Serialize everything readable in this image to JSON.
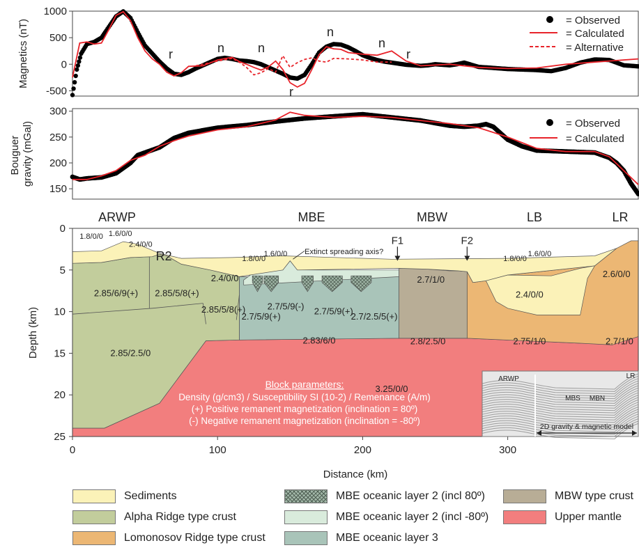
{
  "chart_data": [
    {
      "type": "line",
      "panel": "magnetics",
      "ylabel": "Magnetics (nT)",
      "ylim": [
        -600,
        1000
      ],
      "yticks": [
        -500,
        0,
        500,
        1000
      ],
      "xlim": [
        0,
        390
      ],
      "legend": [
        "= Observed",
        "= Calculated",
        "= Alternative"
      ],
      "legend_position": "top-right",
      "series": [
        {
          "name": "Observed",
          "x": [
            0,
            3,
            6,
            10,
            15,
            20,
            25,
            30,
            35,
            40,
            45,
            50,
            55,
            60,
            65,
            70,
            75,
            80,
            85,
            90,
            95,
            100,
            105,
            110,
            115,
            120,
            125,
            130,
            135,
            140,
            145,
            150,
            155,
            160,
            165,
            170,
            175,
            180,
            185,
            190,
            195,
            200,
            205,
            210,
            215,
            220,
            225,
            230,
            235,
            240,
            245,
            250,
            255,
            260,
            265,
            270,
            275,
            280,
            290,
            300,
            310,
            320,
            330,
            340,
            350,
            360,
            370,
            380,
            390
          ],
          "y": [
            -580,
            -100,
            200,
            380,
            420,
            500,
            700,
            900,
            995,
            870,
            600,
            350,
            200,
            50,
            -80,
            -180,
            -200,
            -150,
            -80,
            -20,
            40,
            100,
            120,
            100,
            70,
            60,
            40,
            0,
            -60,
            -120,
            -180,
            -250,
            -270,
            -200,
            0,
            220,
            330,
            380,
            370,
            320,
            250,
            170,
            120,
            80,
            50,
            30,
            10,
            -10,
            -20,
            -30,
            -20,
            0,
            -10,
            -20,
            0,
            30,
            -10,
            -50,
            -70,
            -90,
            -100,
            -110,
            -130,
            -70,
            30,
            90,
            80,
            -20,
            -40
          ]
        },
        {
          "name": "Calculated",
          "x": [
            0,
            5,
            10,
            15,
            20,
            25,
            30,
            35,
            40,
            45,
            50,
            55,
            60,
            65,
            70,
            75,
            80,
            90,
            100,
            110,
            115,
            120,
            125,
            130,
            135,
            140,
            145,
            150,
            155,
            160,
            165,
            170,
            175,
            180,
            185,
            190,
            200,
            210,
            220,
            230,
            240,
            260,
            280,
            300,
            320,
            340,
            360,
            390
          ],
          "y": [
            -250,
            400,
            420,
            380,
            400,
            650,
            920,
            990,
            820,
            500,
            250,
            100,
            0,
            -150,
            -220,
            -160,
            -40,
            -30,
            80,
            130,
            50,
            0,
            -60,
            -110,
            -50,
            60,
            -100,
            -350,
            -430,
            -360,
            -100,
            180,
            330,
            290,
            280,
            220,
            190,
            170,
            250,
            60,
            -30,
            0,
            -60,
            -80,
            -70,
            0,
            40,
            100
          ]
        },
        {
          "name": "Alternative",
          "x": [
            85,
            100,
            110,
            115,
            120,
            125,
            130,
            135,
            140,
            145,
            150,
            155,
            160,
            165,
            170,
            175,
            180,
            190,
            200,
            210,
            220
          ],
          "y": [
            -30,
            60,
            110,
            40,
            -60,
            -200,
            -160,
            -80,
            -150,
            160,
            -60,
            30,
            90,
            120,
            60,
            40,
            110,
            100,
            80,
            40,
            40
          ]
        }
      ],
      "annotations": [
        "r",
        "n",
        "n",
        "r",
        "n",
        "n",
        "r"
      ]
    },
    {
      "type": "line",
      "panel": "gravity",
      "ylabel": "Bouguer gravity (mGal)",
      "ylim": [
        130,
        305
      ],
      "yticks": [
        150,
        200,
        250,
        300
      ],
      "xlim": [
        0,
        390
      ],
      "legend": [
        "= Observed",
        "= Calculated"
      ],
      "legend_position": "top-right",
      "series": [
        {
          "name": "Observed",
          "x": [
            0,
            5,
            10,
            20,
            30,
            40,
            45,
            50,
            60,
            70,
            80,
            100,
            120,
            140,
            160,
            180,
            200,
            220,
            240,
            260,
            270,
            280,
            285,
            290,
            300,
            310,
            320,
            340,
            360,
            370,
            375,
            380,
            385,
            390
          ],
          "y": [
            173,
            168,
            170,
            172,
            180,
            200,
            215,
            220,
            230,
            248,
            258,
            268,
            273,
            280,
            286,
            290,
            294,
            288,
            282,
            272,
            270,
            272,
            275,
            270,
            245,
            232,
            224,
            222,
            220,
            210,
            200,
            185,
            160,
            140
          ]
        },
        {
          "name": "Calculated",
          "x": [
            0,
            10,
            20,
            30,
            40,
            50,
            60,
            70,
            80,
            100,
            120,
            140,
            150,
            160,
            180,
            200,
            220,
            240,
            260,
            280,
            300,
            320,
            340,
            360,
            370,
            380,
            390
          ],
          "y": [
            168,
            168,
            175,
            185,
            205,
            215,
            232,
            243,
            252,
            264,
            270,
            283,
            298,
            292,
            288,
            290,
            288,
            282,
            276,
            268,
            250,
            228,
            222,
            222,
            212,
            185,
            158
          ]
        }
      ]
    },
    {
      "type": "area",
      "panel": "model",
      "xlabel": "Distance (km)",
      "ylabel": "Depth (km)",
      "xlim": [
        0,
        390
      ],
      "ylim": [
        25,
        0
      ],
      "xticks": [
        0,
        100,
        200,
        300
      ],
      "yticks": [
        0,
        5,
        10,
        15,
        20,
        25
      ],
      "regions": [
        "ARWP",
        "MBE",
        "MBW",
        "LB",
        "LR"
      ],
      "faults": [
        "F1",
        "F2"
      ],
      "ridge": "R2",
      "annotation": "Extinct spreading axis?",
      "block_labels": [
        {
          "text": "1.8/0/0",
          "x": 13,
          "d": 0.9
        },
        {
          "text": "1.6/0/0",
          "x": 33,
          "d": 0.6
        },
        {
          "text": "2.4/0/0",
          "x": 47,
          "d": 1.9
        },
        {
          "text": "R2",
          "x": 63,
          "d": 3.5
        },
        {
          "text": "1.8/0/0",
          "x": 125,
          "d": 3.6
        },
        {
          "text": "1.6/0/0",
          "x": 140,
          "d": 3.0
        },
        {
          "text": "1.8/0/0",
          "x": 305,
          "d": 3.6
        },
        {
          "text": "1.6/0/0",
          "x": 322,
          "d": 3.0
        },
        {
          "text": "2.85/6/9(+)",
          "x": 30,
          "d": 7.8
        },
        {
          "text": "2.85/5/8(+)",
          "x": 72,
          "d": 7.8
        },
        {
          "text": "2.85/5/8(+)",
          "x": 104,
          "d": 9.8
        },
        {
          "text": "2.85/2.5/0",
          "x": 40,
          "d": 15.0
        },
        {
          "text": "2.4/0/0",
          "x": 105,
          "d": 6.0
        },
        {
          "text": "2.7/5/9(-)",
          "x": 147,
          "d": 9.4
        },
        {
          "text": "2.7/5/9(+)",
          "x": 130,
          "d": 10.6
        },
        {
          "text": "2.7/5/9(+)",
          "x": 180,
          "d": 10.0
        },
        {
          "text": "2.7/2.5/5(+)",
          "x": 208,
          "d": 10.6
        },
        {
          "text": "2.83/6/0",
          "x": 170,
          "d": 13.5
        },
        {
          "text": "2.7/1/0",
          "x": 247,
          "d": 6.2
        },
        {
          "text": "2.8/2.5/0",
          "x": 245,
          "d": 13.6
        },
        {
          "text": "2.4/0/0",
          "x": 315,
          "d": 8.0
        },
        {
          "text": "2.75/1/0",
          "x": 315,
          "d": 13.6
        },
        {
          "text": "2.6/0/0",
          "x": 375,
          "d": 5.5
        },
        {
          "text": "2.7/1/0",
          "x": 377,
          "d": 13.6
        },
        {
          "text": "3.25/0/0",
          "x": 220,
          "d": 19.3
        }
      ],
      "block_parameters": {
        "title": "Block parameters:",
        "lines": [
          "Density (g/cm3) / Susceptibility SI (10-2) / Remenance (A/m)",
          "(+) Positive remanent magnetization (inclination = 80º)",
          "(-) Negative remanent magnetization (inclination = -80º)"
        ]
      },
      "inset": {
        "labels": [
          "ARWP",
          "MBS",
          "MBN",
          "LR"
        ],
        "caption": "2D gravity & magnetic model"
      }
    }
  ],
  "legend": [
    {
      "label": "Sediments",
      "color": "#fbf2b8"
    },
    {
      "label": "Alpha Ridge type crust",
      "color": "#c2cd9c"
    },
    {
      "label": "Lomonosov Ridge type crust",
      "color": "#ecb774"
    },
    {
      "label": "MBE oceanic layer 2 (incl 80º)",
      "color": "#8aa294",
      "pattern": "crosshatch"
    },
    {
      "label": "MBE oceanic layer 2 (incl -80º)",
      "color": "#d9ebdc"
    },
    {
      "label": "MBE oceanic layer 3",
      "color": "#a9c4b9"
    },
    {
      "label": "MBW type crust",
      "color": "#b8ad96"
    },
    {
      "label": "Upper mantle",
      "color": "#f27e7e"
    }
  ]
}
